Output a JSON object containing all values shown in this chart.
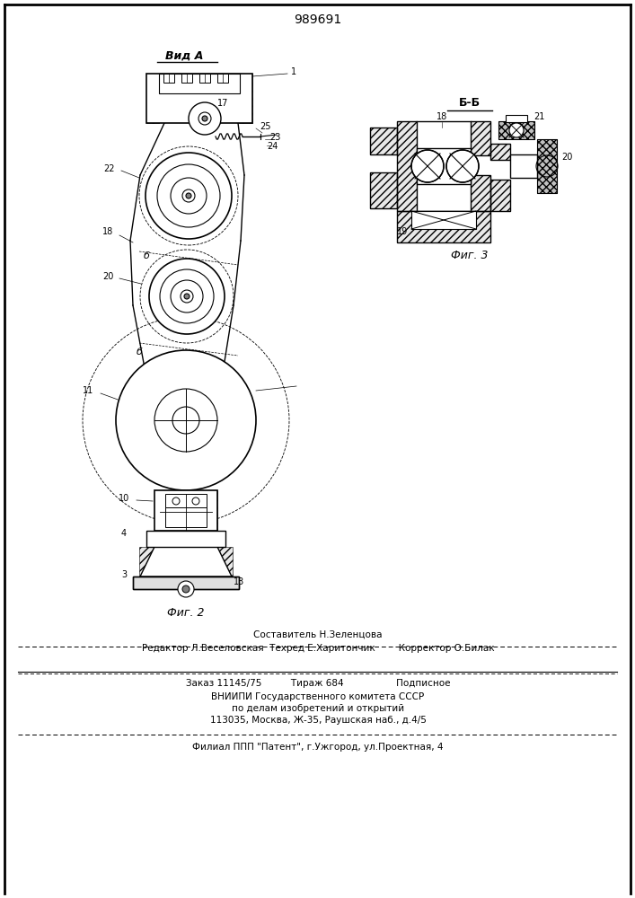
{
  "patent_number": "989691",
  "view_label": "Вид А",
  "fig2_label": "Фиг. 2",
  "fig3_label": "Фиг. 3",
  "section_label": "Б-Б",
  "footer_line1": "Составитель Н.Зеленцова",
  "footer_line2": "Редактор Л.Веселовская  Техред Е.Харитончик        Корректор О.Билак",
  "footer_line3": "Заказ 11145/75          Тираж 684                  Подписное",
  "footer_line4": "ВНИИПИ Государственного комитета СССР",
  "footer_line5": "по делам изобретений и открытий",
  "footer_line6": "113035, Москва, Ж-35, Раушская наб., д.4/5",
  "footer_line7": "Филиал ППП \"Патент\", г.Ужгород, ул.Проектная, 4",
  "bg_color": "#ffffff",
  "line_color": "#000000"
}
